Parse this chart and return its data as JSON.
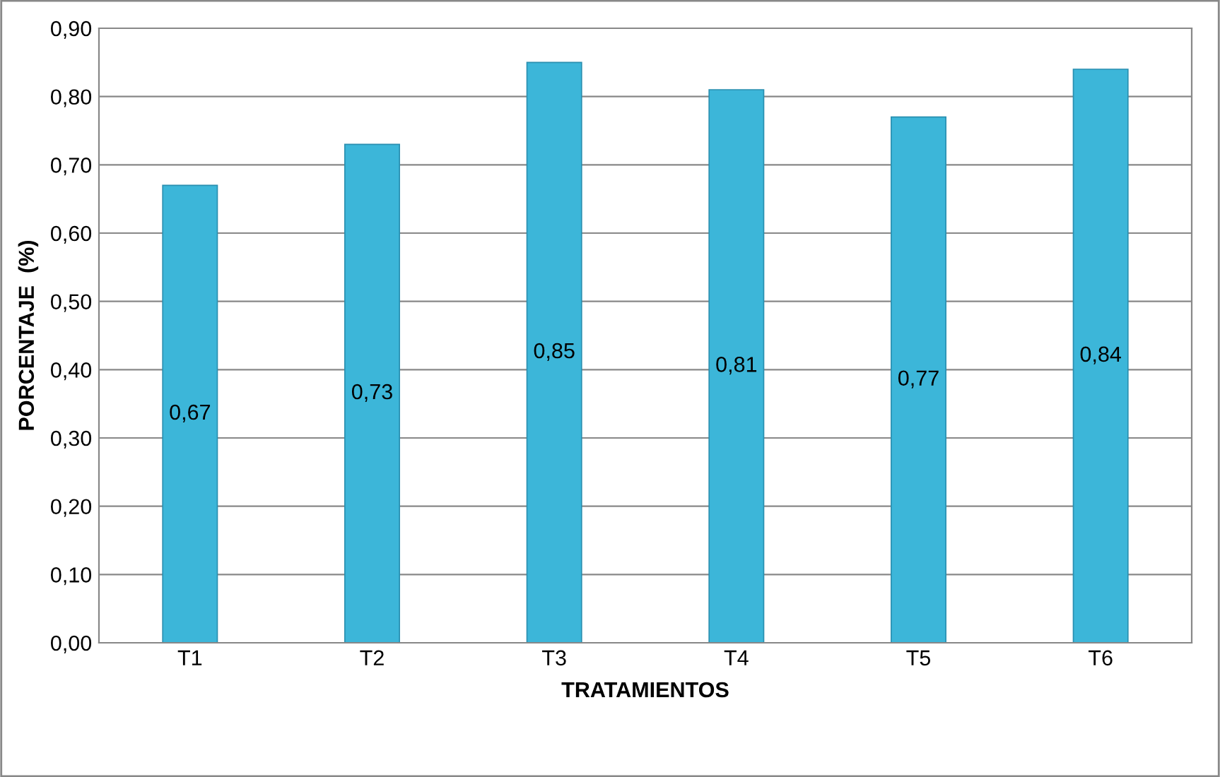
{
  "chart_data": {
    "type": "bar",
    "xlabel": "TRATAMIENTOS",
    "ylabel": "PORCENTAJE  (%)",
    "categories": [
      "T1",
      "T2",
      "T3",
      "T4",
      "T5",
      "T6"
    ],
    "values": [
      0.67,
      0.73,
      0.85,
      0.81,
      0.77,
      0.84
    ],
    "value_labels": [
      "0,67",
      "0,73",
      "0,85",
      "0,81",
      "0,77",
      "0,84"
    ],
    "color": "#3cb6d9",
    "ylim": [
      0,
      0.9
    ],
    "yticks": [
      {
        "value": 0,
        "label": "0,00"
      },
      {
        "value": 0.1,
        "label": "0,10"
      },
      {
        "value": 0.2,
        "label": "0,20"
      },
      {
        "value": 0.3,
        "label": "0,30"
      },
      {
        "value": 0.4,
        "label": "0,40"
      },
      {
        "value": 0.5,
        "label": "0,50"
      },
      {
        "value": 0.6,
        "label": "0,60"
      },
      {
        "value": 0.7,
        "label": "0,70"
      },
      {
        "value": 0.8,
        "label": "0,80"
      },
      {
        "value": 0.9,
        "label": "0,90"
      }
    ],
    "grid": "y",
    "legend": false
  }
}
